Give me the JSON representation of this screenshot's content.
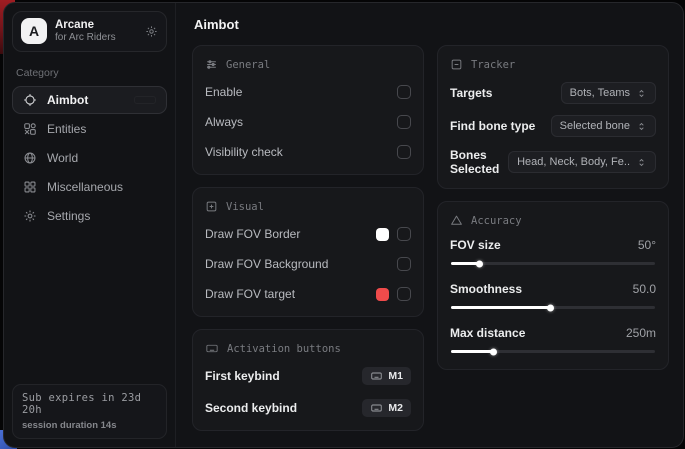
{
  "sidebar": {
    "logo_letter": "A",
    "app_name": "Arcane",
    "app_subtitle": "for Arc Riders",
    "category_label": "Category",
    "items": [
      {
        "label": "Aimbot"
      },
      {
        "label": "Entities"
      },
      {
        "label": "World"
      },
      {
        "label": "Miscellaneous"
      },
      {
        "label": "Settings"
      }
    ],
    "sub_expires": "Sub expires in 23d 20h",
    "session_duration": "session duration 14s"
  },
  "header": {
    "title": "Aimbot"
  },
  "panels": {
    "general": {
      "title": "General",
      "rows": [
        {
          "label": "Enable",
          "checked": false
        },
        {
          "label": "Always",
          "checked": false
        },
        {
          "label": "Visibility check",
          "checked": false
        }
      ]
    },
    "visual": {
      "title": "Visual",
      "rows": [
        {
          "label": "Draw FOV Border",
          "swatch": "#ffffff",
          "checked": false
        },
        {
          "label": "Draw FOV Background",
          "checked": false
        },
        {
          "label": "Draw FOV target",
          "swatch": "#ef4b4b",
          "checked": false
        }
      ]
    },
    "activation": {
      "title": "Activation buttons",
      "rows": [
        {
          "label": "First keybind",
          "key": "M1"
        },
        {
          "label": "Second keybind",
          "key": "M2"
        }
      ]
    },
    "tracker": {
      "title": "Tracker",
      "rows": [
        {
          "label": "Targets",
          "value": "Bots, Teams"
        },
        {
          "label": "Find bone type",
          "value": "Selected bone"
        },
        {
          "label": "Bones Selected",
          "value": "Head, Neck, Body, Fe.."
        }
      ]
    },
    "accuracy": {
      "title": "Accuracy",
      "rows": [
        {
          "label": "FOV size",
          "value": "50°",
          "percent": 14
        },
        {
          "label": "Smoothness",
          "value": "50.0",
          "percent": 49
        },
        {
          "label": "Max distance",
          "value": "250m",
          "percent": 21
        }
      ]
    }
  },
  "colors": {
    "fov_border_swatch": "#ffffff",
    "fov_target_swatch": "#ef4b4b",
    "accent_red_bg": "#a01d22",
    "accent_blue_bg": "#3d63c9"
  }
}
